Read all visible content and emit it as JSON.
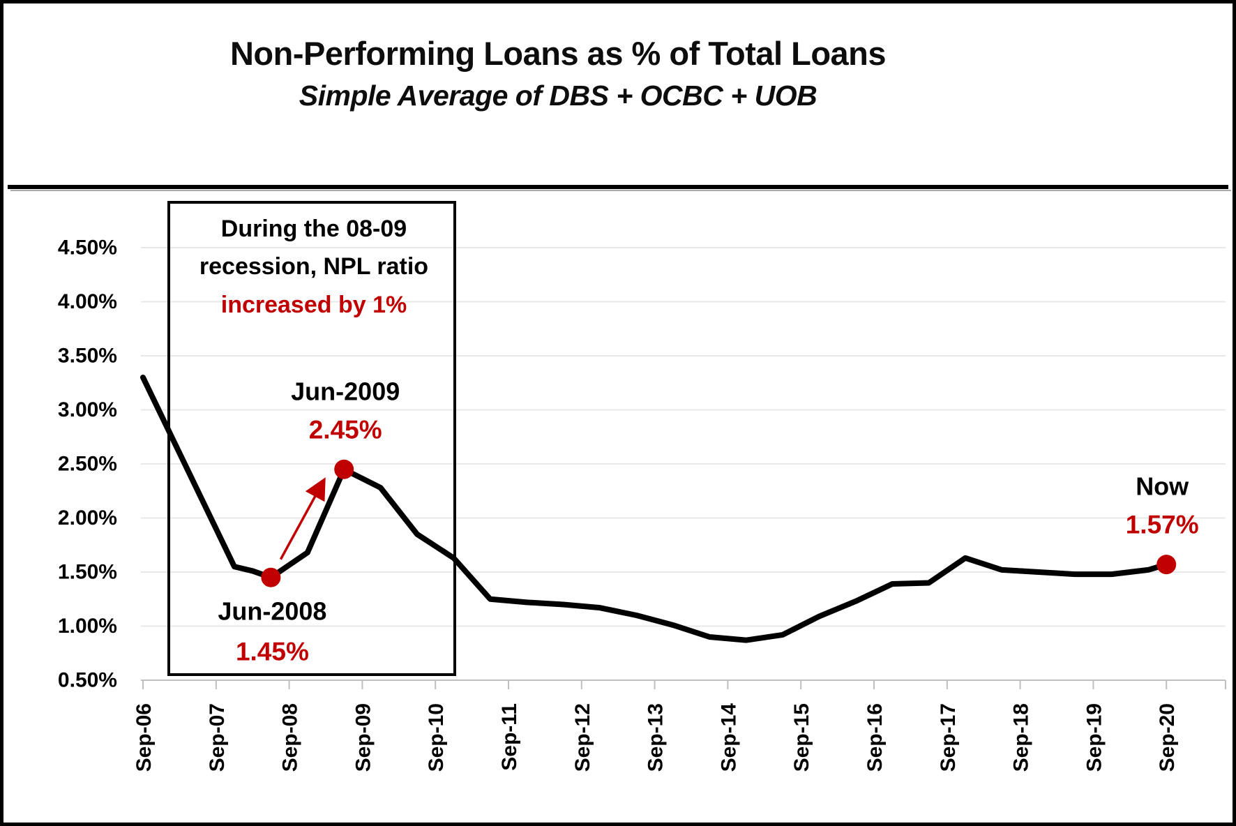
{
  "page": {
    "title": "Non-Performing Loans as % of Total Loans",
    "subtitle": "Simple Average of DBS + OCBC + UOB"
  },
  "colors": {
    "red": "#C00000",
    "line": "#000000",
    "gridline": "#E8E8E8",
    "axis": "#BFBFBF",
    "text": "#000000"
  },
  "chart_data": {
    "type": "line",
    "title": "Non-Performing Loans as % of Total Loans",
    "subtitle": "Simple Average of DBS + OCBC + UOB",
    "series_name": "NPL ratio, simple average of DBS + OCBC + UOB",
    "x": [
      "Sep-06",
      "Dec-06",
      "Jun-07",
      "Dec-07",
      "Mar-08",
      "Jun-08",
      "Dec-08",
      "Jun-09",
      "Dec-09",
      "Jun-10",
      "Dec-10",
      "Jun-11",
      "Dec-11",
      "Jun-12",
      "Dec-12",
      "Jun-13",
      "Dec-13",
      "Jun-14",
      "Dec-14",
      "Jun-15",
      "Dec-15",
      "Jun-16",
      "Dec-16",
      "Jun-17",
      "Dec-17",
      "Jun-18",
      "Dec-18",
      "Jun-19",
      "Dec-19",
      "Jun-20",
      "Sep-20"
    ],
    "values_pct": [
      3.3,
      2.95,
      2.25,
      1.55,
      1.51,
      1.45,
      1.68,
      2.45,
      2.28,
      1.85,
      1.63,
      1.25,
      1.22,
      1.2,
      1.17,
      1.1,
      1.01,
      0.9,
      0.87,
      0.92,
      1.09,
      1.23,
      1.39,
      1.4,
      1.63,
      1.52,
      1.5,
      1.48,
      1.48,
      1.52,
      1.57
    ],
    "ylim_pct": [
      0.5,
      4.5
    ],
    "y_tick_step_pct": 0.5,
    "y_tick_labels": [
      "4.50%",
      "4.00%",
      "3.50%",
      "3.00%",
      "2.50%",
      "2.00%",
      "1.50%",
      "1.00%",
      "0.50%"
    ],
    "x_tick_labels": [
      "Sep-06",
      "Sep-07",
      "Sep-08",
      "Sep-09",
      "Sep-10",
      "Sep-11",
      "Sep-12",
      "Sep-13",
      "Sep-14",
      "Sep-15",
      "Sep-16",
      "Sep-17",
      "Sep-18",
      "Sep-19",
      "Sep-20"
    ],
    "grid": true,
    "legend": false
  },
  "annotations": {
    "box_note": {
      "lines": [
        "During the 08-09",
        "recession, NPL ratio",
        "increased by 1%"
      ],
      "emphasis_line_index": 2
    },
    "labeled_points": [
      {
        "series_date": "Jun-08",
        "title": "Jun-2008",
        "value_label": "1.45%",
        "placement": "below"
      },
      {
        "series_date": "Jun-09",
        "title": "Jun-2009",
        "value_label": "2.45%",
        "placement": "above"
      },
      {
        "series_date": "Sep-20",
        "title": "Now",
        "value_label": "1.57%",
        "placement": "above"
      }
    ],
    "arrow": {
      "from_date": "Jun-08",
      "to_date": "Jun-09"
    }
  }
}
